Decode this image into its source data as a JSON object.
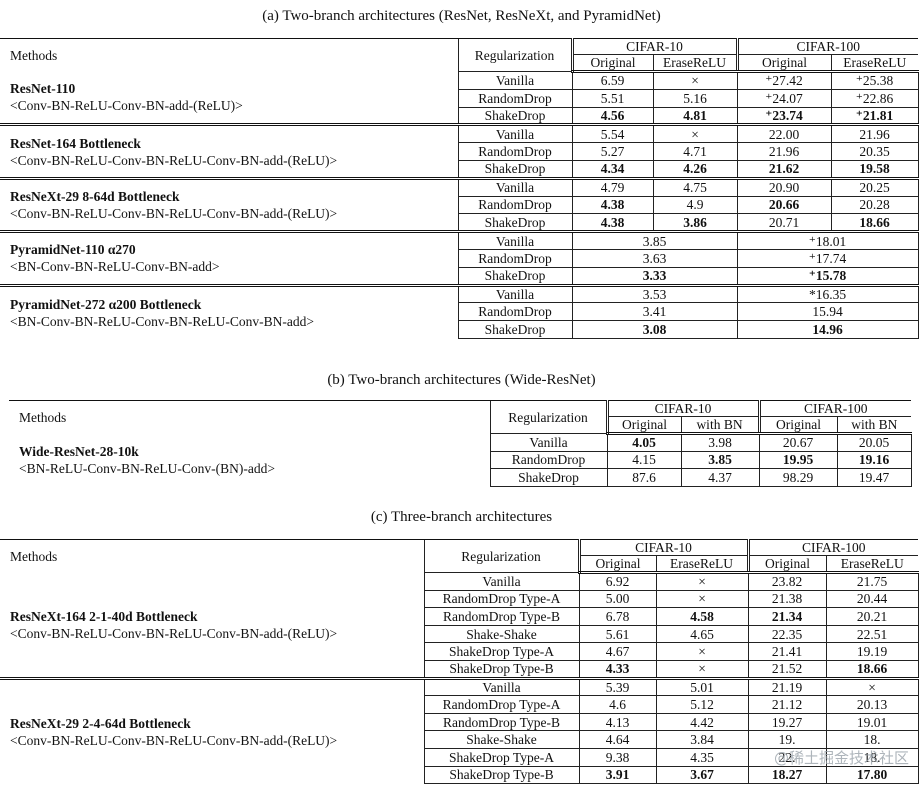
{
  "captions": {
    "a": "(a) Two-branch architectures (ResNet, ResNeXt, and PyramidNet)",
    "b": "(b) Two-branch architectures (Wide-ResNet)",
    "c": "(c) Three-branch architectures"
  },
  "headers": {
    "methods": "Methods",
    "regularization": "Regularization",
    "cifar10": "CIFAR-10",
    "cifar100": "CIFAR-100",
    "original": "Original",
    "erase_relu": "EraseReLU",
    "with_bn": "with BN"
  },
  "table_a": {
    "groups": [
      {
        "name": "ResNet-110",
        "structure": "<Conv-BN-ReLU-Conv-BN-add-(ReLU)>",
        "rows": [
          {
            "reg": "Vanilla",
            "c10o": "6.59",
            "c10e": "×",
            "c100o": "⁺27.42",
            "c100e": "⁺25.38"
          },
          {
            "reg": "RandomDrop",
            "c10o": "5.51",
            "c10e": "5.16",
            "c100o": "⁺24.07",
            "c100e": "⁺22.86"
          },
          {
            "reg": "ShakeDrop",
            "c10o": "4.56",
            "c10e": "4.81",
            "c100o": "⁺23.74",
            "c100e": "⁺21.81"
          }
        ]
      },
      {
        "name": "ResNet-164 Bottleneck",
        "structure": "<Conv-BN-ReLU-Conv-BN-ReLU-Conv-BN-add-(ReLU)>",
        "rows": [
          {
            "reg": "Vanilla",
            "c10o": "5.54",
            "c10e": "×",
            "c100o": "22.00",
            "c100e": "21.96"
          },
          {
            "reg": "RandomDrop",
            "c10o": "5.27",
            "c10e": "4.71",
            "c100o": "21.96",
            "c100e": "20.35"
          },
          {
            "reg": "ShakeDrop",
            "c10o": "4.34",
            "c10e": "4.26",
            "c100o": "21.62",
            "c100e": "19.58"
          }
        ]
      },
      {
        "name": "ResNeXt-29 8-64d Bottleneck",
        "structure": "<Conv-BN-ReLU-Conv-BN-ReLU-Conv-BN-add-(ReLU)>",
        "rows": [
          {
            "reg": "Vanilla",
            "c10o": "4.79",
            "c10e": "4.75",
            "c100o": "20.90",
            "c100e": "20.25"
          },
          {
            "reg": "RandomDrop",
            "c10o": "4.38",
            "c10e": "4.9",
            "c100o": "20.66",
            "c100e": "20.28"
          },
          {
            "reg": "ShakeDrop",
            "c10o": "4.38",
            "c10e": "3.86",
            "c100o": "20.71",
            "c100e": "18.66"
          }
        ]
      },
      {
        "name": "PyramidNet-110 α270",
        "structure": "<BN-Conv-BN-ReLU-Conv-BN-add>",
        "rows": [
          {
            "reg": "Vanilla",
            "c10": "3.85",
            "c100": "⁺18.01"
          },
          {
            "reg": "RandomDrop",
            "c10": "3.63",
            "c100": "⁺17.74"
          },
          {
            "reg": "ShakeDrop",
            "c10": "3.33",
            "c100": "⁺15.78"
          }
        ]
      },
      {
        "name": "PyramidNet-272 α200 Bottleneck",
        "structure": "<BN-Conv-BN-ReLU-Conv-BN-ReLU-Conv-BN-add>",
        "rows": [
          {
            "reg": "Vanilla",
            "c10": "3.53",
            "c100": "*16.35"
          },
          {
            "reg": "RandomDrop",
            "c10": "3.41",
            "c100": "15.94"
          },
          {
            "reg": "ShakeDrop",
            "c10": "3.08",
            "c100": "14.96"
          }
        ]
      }
    ]
  },
  "table_b": {
    "name": "Wide-ResNet-28-10k",
    "structure": "<BN-ReLU-Conv-BN-ReLU-Conv-(BN)-add>",
    "rows": [
      {
        "reg": "Vanilla",
        "c10o": "4.05",
        "c10b": "3.98",
        "c100o": "20.67",
        "c100b": "20.05"
      },
      {
        "reg": "RandomDrop",
        "c10o": "4.15",
        "c10b": "3.85",
        "c100o": "19.95",
        "c100b": "19.16"
      },
      {
        "reg": "ShakeDrop",
        "c10o": "87.6",
        "c10b": "4.37",
        "c100o": "98.29",
        "c100b": "19.47"
      }
    ]
  },
  "table_c": {
    "groups": [
      {
        "name": "ResNeXt-164 2-1-40d Bottleneck",
        "structure": "<Conv-BN-ReLU-Conv-BN-ReLU-Conv-BN-add-(ReLU)>",
        "rows": [
          {
            "reg": "Vanilla",
            "c10o": "6.92",
            "c10e": "×",
            "c100o": "23.82",
            "c100e": "21.75"
          },
          {
            "reg": "RandomDrop Type-A",
            "c10o": "5.00",
            "c10e": "×",
            "c100o": "21.38",
            "c100e": "20.44"
          },
          {
            "reg": "RandomDrop Type-B",
            "c10o": "6.78",
            "c10e": "4.58",
            "c100o": "21.34",
            "c100e": "20.21"
          },
          {
            "reg": "Shake-Shake",
            "c10o": "5.61",
            "c10e": "4.65",
            "c100o": "22.35",
            "c100e": "22.51"
          },
          {
            "reg": "ShakeDrop Type-A",
            "c10o": "4.67",
            "c10e": "×",
            "c100o": "21.41",
            "c100e": "19.19"
          },
          {
            "reg": "ShakeDrop Type-B",
            "c10o": "4.33",
            "c10e": "×",
            "c100o": "21.52",
            "c100e": "18.66"
          }
        ]
      },
      {
        "name": "ResNeXt-29 2-4-64d Bottleneck",
        "structure": "<Conv-BN-ReLU-Conv-BN-ReLU-Conv-BN-add-(ReLU)>",
        "rows": [
          {
            "reg": "Vanilla",
            "c10o": "5.39",
            "c10e": "5.01",
            "c100o": "21.19",
            "c100e": "×"
          },
          {
            "reg": "RandomDrop Type-A",
            "c10o": "4.6",
            "c10e": "5.12",
            "c100o": "21.12",
            "c100e": "20.13"
          },
          {
            "reg": "RandomDrop Type-B",
            "c10o": "4.13",
            "c10e": "4.42",
            "c100o": "19.27",
            "c100e": "19.01"
          },
          {
            "reg": "Shake-Shake",
            "c10o": "4.64",
            "c10e": "3.84",
            "c100o": "19.",
            "c100e": "18."
          },
          {
            "reg": "ShakeDrop Type-A",
            "c10o": "9.38",
            "c10e": "4.35",
            "c100o": "22.",
            "c100e": "18."
          },
          {
            "reg": "ShakeDrop Type-B",
            "c10o": "3.91",
            "c10e": "3.67",
            "c100o": "18.27",
            "c100e": "17.80"
          }
        ]
      }
    ]
  },
  "watermark": "@稀土掘金技术社区"
}
